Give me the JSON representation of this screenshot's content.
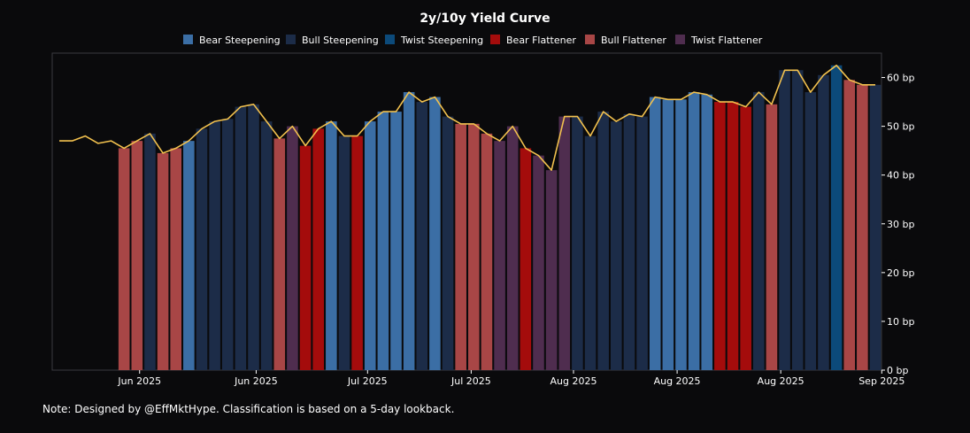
{
  "chart_data": {
    "type": "bar",
    "title": "2y/10y Yield Curve",
    "xlabel": "",
    "ylabel": "",
    "ylim": [
      0,
      65
    ],
    "y_ticks": [
      0,
      10,
      20,
      30,
      40,
      50,
      60
    ],
    "y_tick_suffix": " bp",
    "grid": false,
    "legend_position": "top-center",
    "x_tick_labels": [
      {
        "label": "Jun 2025",
        "index": 6.2
      },
      {
        "label": "Jun 2025",
        "index": 15.2
      },
      {
        "label": "Jul 2025",
        "index": 23.8
      },
      {
        "label": "Jul 2025",
        "index": 31.8
      },
      {
        "label": "Aug 2025",
        "index": 39.7
      },
      {
        "label": "Aug 2025",
        "index": 47.7
      },
      {
        "label": "Aug 2025",
        "index": 55.7
      },
      {
        "label": "Sep 2025",
        "index": 63.5
      }
    ],
    "regimes": [
      {
        "key": "bear_steep",
        "name": "Bear Steepening",
        "color": "#3b6ea5"
      },
      {
        "key": "bull_steep",
        "name": "Bull Steepening",
        "color": "#1c2c48"
      },
      {
        "key": "twist_steep",
        "name": "Twist Steepening",
        "color": "#0c4a7a"
      },
      {
        "key": "bear_flat",
        "name": "Bear Flattener",
        "color": "#a40c0c"
      },
      {
        "key": "bull_flat",
        "name": "Bull Flattener",
        "color": "#a84646"
      },
      {
        "key": "twist_flat",
        "name": "Twist Flattener",
        "color": "#4f2d4f"
      }
    ],
    "line_series": {
      "name": "2y/10y spread",
      "color": "#f2c14e",
      "values": [
        47,
        47,
        48,
        46.5,
        47,
        45.5,
        47,
        48.5,
        44.5,
        45.5,
        47,
        49.5,
        51,
        51.5,
        54,
        54.5,
        51,
        47.5,
        50,
        46,
        49.5,
        51,
        48,
        48,
        51,
        53,
        53,
        57,
        55,
        56,
        52,
        50.5,
        50.5,
        48.5,
        47,
        50,
        45.5,
        44,
        41,
        52,
        52,
        48,
        53,
        51,
        52.5,
        52,
        56,
        55.5,
        55.5,
        57,
        56.5,
        55,
        55,
        54,
        57,
        54.5,
        61.5,
        61.5,
        57,
        60.5,
        62.5,
        59.5,
        58.5,
        58.5
      ]
    },
    "bars": [
      null,
      null,
      null,
      null,
      null,
      "bull_flat",
      "bull_flat",
      "bull_steep",
      "bull_flat",
      "bull_flat",
      "bear_steep",
      "bull_steep",
      "bull_steep",
      "bull_steep",
      "bull_steep",
      "bull_steep",
      "bull_steep",
      "bull_flat",
      "twist_flat",
      "bear_flat",
      "bear_flat",
      "bear_steep",
      "bull_steep",
      "bear_flat",
      "bear_steep",
      "bear_steep",
      "bear_steep",
      "bear_steep",
      "bull_steep",
      "bear_steep",
      "bull_steep",
      "bull_flat",
      "bull_flat",
      "bull_flat",
      "twist_flat",
      "twist_flat",
      "bear_flat",
      "twist_flat",
      "twist_flat",
      "twist_flat",
      "bull_steep",
      "bull_steep",
      "bull_steep",
      "bull_steep",
      "bull_steep",
      "bull_steep",
      "bear_steep",
      "bear_steep",
      "bear_steep",
      "bear_steep",
      "bear_steep",
      "bear_flat",
      "bear_flat",
      "bear_flat",
      "bull_steep",
      "bull_flat",
      "bull_steep",
      "bull_steep",
      "bull_steep",
      "bull_steep",
      "twist_steep",
      "bull_flat",
      "bull_flat",
      "bull_steep"
    ],
    "bar_heights": [
      null,
      null,
      null,
      null,
      null,
      45.5,
      47,
      48.5,
      44.5,
      45.5,
      47,
      49.5,
      51,
      51.5,
      54,
      54.5,
      51,
      47.5,
      50,
      46,
      49.5,
      51,
      48,
      48,
      51,
      53,
      53,
      57,
      55,
      56,
      52,
      50.5,
      50.5,
      48.5,
      47,
      50,
      45.5,
      44,
      41,
      52,
      52,
      48,
      53,
      51,
      52.5,
      52,
      56,
      55.5,
      55.5,
      57,
      56.5,
      55,
      55,
      54,
      57,
      54.5,
      61.5,
      61.5,
      57,
      60.5,
      62.5,
      59.5,
      58.5,
      58.5
    ]
  },
  "footer": {
    "note": "Note: Designed by @EffMktHype. Classification is based on a 5-day lookback."
  }
}
